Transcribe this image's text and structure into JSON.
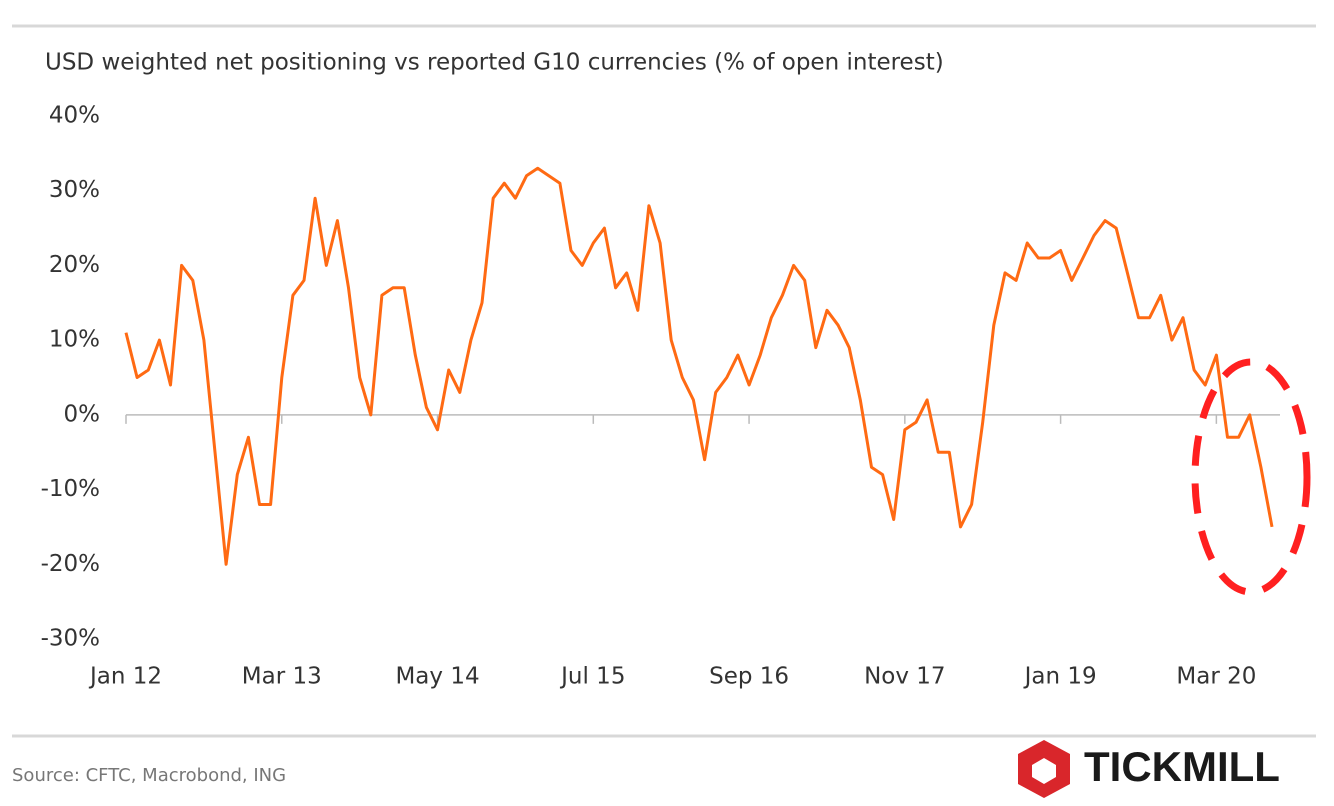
{
  "chart_data": {
    "type": "line",
    "title": "USD weighted net positioning vs reported G10 currencies (% of open interest)",
    "source": "Source: CFTC, Macrobond, ING",
    "brand": "TICKMILL",
    "color": "#ff6a13",
    "x": [
      "2012-01",
      "2012-02",
      "2012-03",
      "2012-04",
      "2012-05",
      "2012-06",
      "2012-07",
      "2012-08",
      "2012-09",
      "2012-10",
      "2012-11",
      "2012-12",
      "2013-01",
      "2013-02",
      "2013-03",
      "2013-04",
      "2013-05",
      "2013-06",
      "2013-07",
      "2013-08",
      "2013-09",
      "2013-10",
      "2013-11",
      "2013-12",
      "2014-01",
      "2014-02",
      "2014-03",
      "2014-04",
      "2014-05",
      "2014-06",
      "2014-07",
      "2014-08",
      "2014-09",
      "2014-10",
      "2014-11",
      "2014-12",
      "2015-01",
      "2015-02",
      "2015-03",
      "2015-04",
      "2015-05",
      "2015-06",
      "2015-07",
      "2015-08",
      "2015-09",
      "2015-10",
      "2015-11",
      "2015-12",
      "2016-01",
      "2016-02",
      "2016-03",
      "2016-04",
      "2016-05",
      "2016-06",
      "2016-07",
      "2016-08",
      "2016-09",
      "2016-10",
      "2016-11",
      "2016-12",
      "2017-01",
      "2017-02",
      "2017-03",
      "2017-04",
      "2017-05",
      "2017-06",
      "2017-07",
      "2017-08",
      "2017-09",
      "2017-10",
      "2017-11",
      "2017-12",
      "2018-01",
      "2018-02",
      "2018-03",
      "2018-04",
      "2018-05",
      "2018-06",
      "2018-07",
      "2018-08",
      "2018-09",
      "2018-10",
      "2018-11",
      "2018-12",
      "2019-01",
      "2019-02",
      "2019-03",
      "2019-04",
      "2019-05",
      "2019-06",
      "2019-07",
      "2019-08",
      "2019-09",
      "2019-10",
      "2019-11",
      "2019-12",
      "2020-01",
      "2020-02",
      "2020-03",
      "2020-04",
      "2020-05",
      "2020-06",
      "2020-07",
      "2020-08"
    ],
    "values": [
      11,
      5,
      6,
      10,
      4,
      20,
      18,
      10,
      -5,
      -20,
      -8,
      -3,
      -12,
      -12,
      5,
      16,
      18,
      29,
      20,
      26,
      17,
      5,
      0,
      16,
      17,
      17,
      8,
      1,
      -2,
      6,
      3,
      10,
      15,
      29,
      31,
      29,
      32,
      33,
      32,
      31,
      22,
      20,
      23,
      25,
      17,
      19,
      14,
      28,
      23,
      10,
      5,
      2,
      -6,
      3,
      5,
      8,
      4,
      8,
      13,
      16,
      20,
      18,
      9,
      14,
      12,
      9,
      2,
      -7,
      -8,
      -14,
      -2,
      -1,
      2,
      -5,
      -5,
      -15,
      -12,
      -1,
      12,
      19,
      18,
      23,
      21,
      21,
      22,
      18,
      21,
      24,
      26,
      25,
      19,
      13,
      13,
      16,
      10,
      13,
      6,
      4,
      8,
      -3,
      -3,
      0,
      -7,
      -15
    ],
    "xlim": [
      "2012-01",
      "2020-08"
    ],
    "xticks": [
      {
        "value": "2012-01",
        "label": "Jan 12"
      },
      {
        "value": "2013-03",
        "label": "Mar 13"
      },
      {
        "value": "2014-05",
        "label": "May 14"
      },
      {
        "value": "2015-07",
        "label": "Jul 15"
      },
      {
        "value": "2016-09",
        "label": "Sep 16"
      },
      {
        "value": "2017-11",
        "label": "Nov 17"
      },
      {
        "value": "2019-01",
        "label": "Jan 19"
      },
      {
        "value": "2020-03",
        "label": "Mar 20"
      }
    ],
    "ylim": [
      -30,
      40
    ],
    "yticks": [
      {
        "value": -30,
        "label": "-30%"
      },
      {
        "value": -20,
        "label": "-20%"
      },
      {
        "value": -10,
        "label": "-10%"
      },
      {
        "value": 0,
        "label": "0%"
      },
      {
        "value": 10,
        "label": "10%"
      },
      {
        "value": 20,
        "label": "20%"
      },
      {
        "value": 30,
        "label": "30%"
      },
      {
        "value": 40,
        "label": "40%"
      }
    ],
    "grid": false
  }
}
